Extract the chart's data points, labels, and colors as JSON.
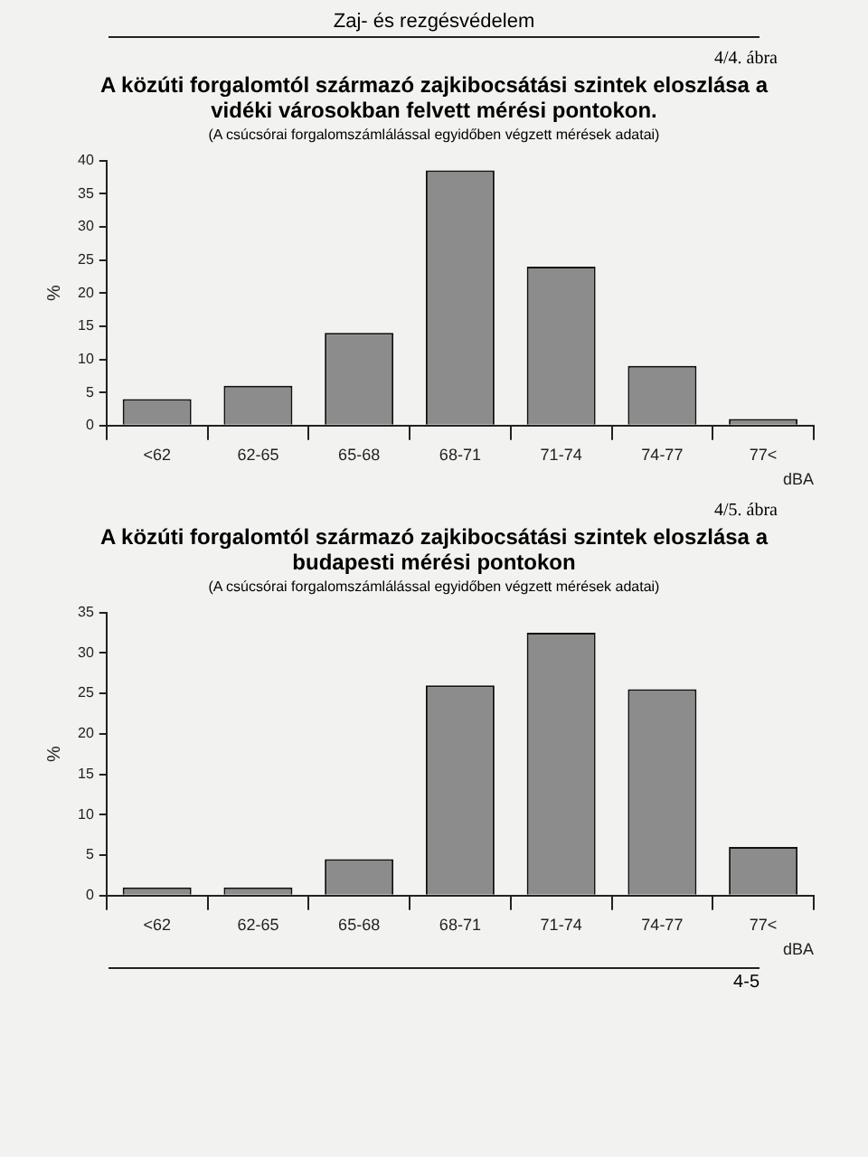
{
  "chart_data": [
    {
      "type": "bar",
      "title": "A közúti forgalomtól származó zajkibocsátási szintek eloszlása a vidéki városokban felvett mérési pontokon.",
      "subtitle": "(A csúcsórai forgalomszámlálással egyidőben végzett mérések adatai)",
      "annotations": [
        "Zaj- és rezgésvédelem",
        "4/4. ábra"
      ],
      "xlabel": "dBA",
      "ylabel": "%",
      "categories": [
        "<62",
        "62-65",
        "65-68",
        "68-71",
        "71-74",
        "74-77",
        "77<"
      ],
      "values": [
        4,
        6,
        14,
        38.5,
        24,
        9,
        1
      ],
      "color": "#8c8c8c",
      "ylim": [
        0,
        40
      ],
      "yticks": [
        0,
        5,
        10,
        15,
        20,
        25,
        30,
        35,
        40
      ],
      "grid": false,
      "legend": false
    },
    {
      "type": "bar",
      "title": "A közúti forgalomtól származó zajkibocsátási szintek eloszlása a budapesti mérési pontokon",
      "subtitle": "(A csúcsórai forgalomszámlálással egyidőben végzett mérések adatai)",
      "annotations": [
        "4/5. ábra",
        "4-5"
      ],
      "xlabel": "dBA",
      "ylabel": "%",
      "categories": [
        "<62",
        "62-65",
        "65-68",
        "68-71",
        "71-74",
        "74-77",
        "77<"
      ],
      "values": [
        1,
        1,
        4.5,
        26,
        32.5,
        25.5,
        6
      ],
      "color": "#8c8c8c",
      "ylim": [
        0,
        35
      ],
      "yticks": [
        0,
        5,
        10,
        15,
        20,
        25,
        30,
        35
      ],
      "grid": false,
      "legend": false
    }
  ]
}
